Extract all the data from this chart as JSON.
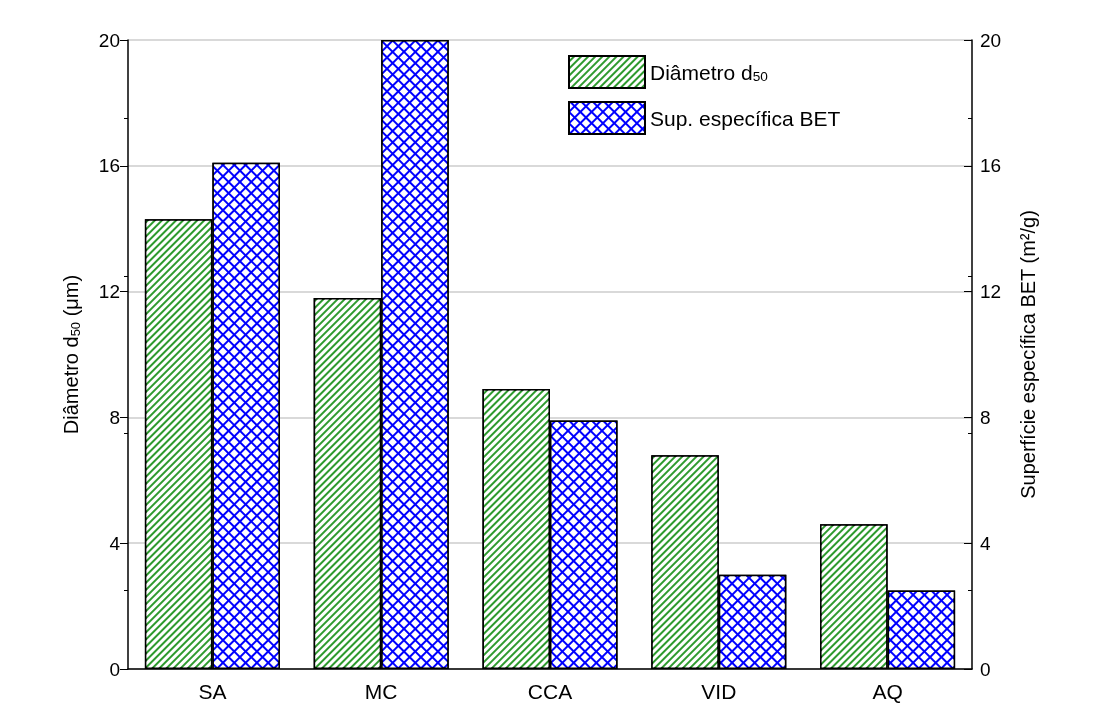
{
  "chart_data": {
    "type": "bar",
    "categories": [
      "SA",
      "MC",
      "CCA",
      "VID",
      "AQ"
    ],
    "series": [
      {
        "name": "Diâmetro d$_{50}$",
        "color": "#2e9a2e",
        "values": [
          14.3,
          11.8,
          8.9,
          6.8,
          4.6
        ]
      },
      {
        "name": "Sup. específica BET",
        "color": "#0000ff",
        "axis": "y2",
        "values": [
          16.1,
          20,
          7.9,
          3.0,
          2.5
        ]
      }
    ],
    "ylabel": "Diâmetro d$_{50}$ (μm)",
    "y2label": "Superfície específica BET (m²/g)",
    "ylim": [
      0,
      20
    ],
    "yticks": [
      0,
      4,
      8,
      12,
      16,
      20
    ],
    "y2lim": [
      0,
      20
    ],
    "y2ticks": [
      0,
      4,
      8,
      12,
      16,
      20
    ],
    "grid": "y",
    "legend": "top right"
  }
}
